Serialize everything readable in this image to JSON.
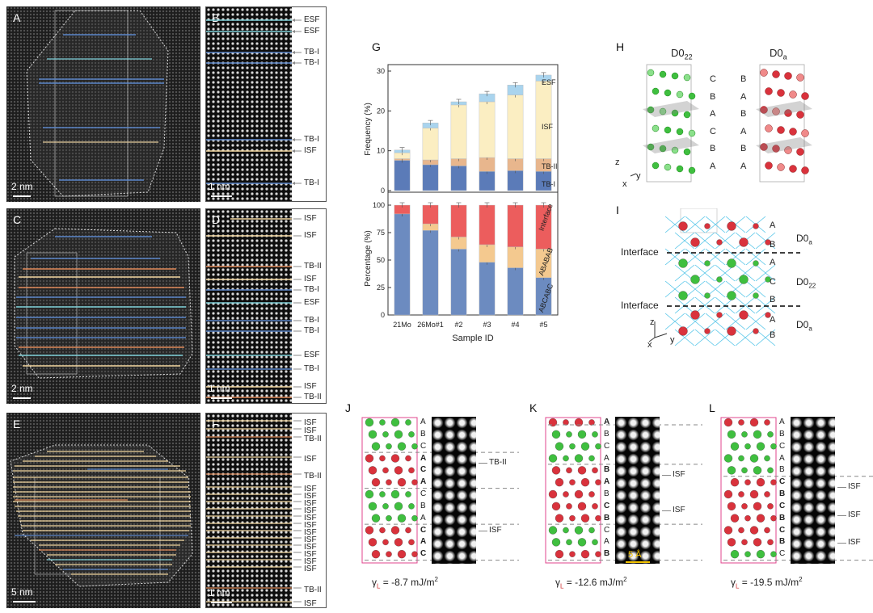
{
  "panels": {
    "A": {
      "label": "A",
      "scale": "2 nm"
    },
    "B": {
      "label": "B",
      "scale": "1 nm",
      "faults": [
        "ESF",
        "ESF",
        "TB-I",
        "TB-I",
        "TB-I",
        "ISF",
        "TB-I"
      ]
    },
    "C": {
      "label": "C",
      "scale": "2 nm"
    },
    "D": {
      "label": "D",
      "scale": "1 nm",
      "faults": [
        "ISF",
        "ISF",
        "TB-II",
        "ISF",
        "TB-I",
        "ESF",
        "TB-I",
        "TB-I",
        "ESF",
        "TB-I",
        "ISF",
        "TB-II"
      ]
    },
    "E": {
      "label": "E",
      "scale": "5 nm"
    },
    "F": {
      "label": "F",
      "scale": "1 nm",
      "faults": [
        "ISF",
        "ISF",
        "TB-II",
        "ISF",
        "TB-II",
        "ISF",
        "ISF",
        "ISF",
        "ISF",
        "ISF",
        "ISF",
        "ISF",
        "ISF",
        "ISF",
        "ISF",
        "ISF",
        "ISF",
        "TB-II",
        "ISF"
      ]
    },
    "G": {
      "label": "G"
    },
    "H": {
      "label": "H",
      "left_title": "D0",
      "left_sub": "22",
      "right_title": "D0",
      "right_sub": "a",
      "left_stack": [
        "C",
        "B",
        "A",
        "C",
        "B",
        "A"
      ],
      "right_stack": [
        "B",
        "A",
        "B",
        "A",
        "B",
        "A"
      ],
      "axis_z": "z",
      "axis_x": "x",
      "axis_y": "y"
    },
    "I": {
      "label": "I",
      "interface": "Interface",
      "stack": [
        "A",
        "B",
        "A",
        "C",
        "B",
        "A",
        "B"
      ],
      "phase_top": "D0",
      "phase_top_sub": "a",
      "phase_mid": "D0",
      "phase_mid_sub": "22",
      "phase_bot": "D0",
      "phase_bot_sub": "a",
      "axis_z": "z",
      "axis_x": "x",
      "axis_y": "y"
    },
    "J": {
      "label": "J",
      "stack": [
        "A",
        "B",
        "C",
        "A",
        "C",
        "A",
        "C",
        "B",
        "A",
        "C",
        "A",
        "C"
      ],
      "bold": [
        false,
        false,
        false,
        true,
        true,
        true,
        false,
        false,
        false,
        true,
        true,
        true
      ],
      "faults": [
        "TB-II",
        "ISF"
      ],
      "gamma_prefix": "γ",
      "gamma_sub": "L",
      "gamma_value": " = -8.7 mJ/m",
      "gamma_sup": "2"
    },
    "K": {
      "label": "K",
      "stack": [
        "A",
        "B",
        "C",
        "A",
        "B",
        "A",
        "B",
        "C",
        "B",
        "C",
        "A",
        "B"
      ],
      "bold": [
        true,
        false,
        false,
        false,
        true,
        true,
        false,
        true,
        true,
        false,
        false,
        true
      ],
      "faults": [
        "ISF",
        "ISF"
      ],
      "scale": "5 Å",
      "gamma_prefix": "γ",
      "gamma_sub": "L",
      "gamma_value": " = -12.6 mJ/m",
      "gamma_sup": "2"
    },
    "L": {
      "label": "L",
      "stack": [
        "A",
        "B",
        "C",
        "A",
        "B",
        "C",
        "B",
        "C",
        "B",
        "C",
        "B",
        "C"
      ],
      "bold": [
        false,
        false,
        false,
        false,
        false,
        true,
        true,
        true,
        true,
        true,
        true,
        false
      ],
      "faults": [
        "ISF",
        "ISF",
        "ISF"
      ],
      "gamma_prefix": "γ",
      "gamma_sub": "L",
      "gamma_value": " = -19.5 mJ/m",
      "gamma_sup": "2"
    }
  },
  "colors": {
    "tb1": "#5b86c9",
    "tb2": "#e08a5a",
    "isf": "#f3d7a0",
    "esf": "#7fd0d8",
    "red_atom": "#d9323c",
    "green_atom": "#3fbf3f",
    "frame_pink": "#e0458c"
  },
  "chart_data": [
    {
      "type": "bar",
      "stacked": true,
      "ylabel": "Frequency (%)",
      "ylim": [
        0,
        30
      ],
      "yticks": [
        0,
        10,
        20,
        30
      ],
      "categories": [
        "21Mo",
        "26Mo#1",
        "#2",
        "#3",
        "#4",
        "#5"
      ],
      "series": [
        {
          "name": "TB-I",
          "color": "#5b7bb8",
          "values": [
            7.6,
            6.5,
            6.2,
            4.8,
            5.0,
            4.8
          ]
        },
        {
          "name": "TB-II",
          "color": "#e8b68d",
          "values": [
            0.4,
            1.2,
            1.8,
            3.5,
            3.0,
            3.2
          ]
        },
        {
          "name": "ISF",
          "color": "#fbeec2",
          "values": [
            1.5,
            8.0,
            13.5,
            14.0,
            16.0,
            19.5
          ]
        },
        {
          "name": "ESF",
          "color": "#a9d4ee",
          "values": [
            0.7,
            1.3,
            0.8,
            2.0,
            2.5,
            1.5
          ]
        }
      ]
    },
    {
      "type": "bar",
      "stacked": true,
      "xlabel": "Sample ID",
      "ylabel": "Percentage (%)",
      "ylim": [
        0,
        100
      ],
      "yticks": [
        0,
        25,
        50,
        75,
        100
      ],
      "categories": [
        "21Mo",
        "26Mo#1",
        "#2",
        "#3",
        "#4",
        "#5"
      ],
      "series": [
        {
          "name": "ABCABC",
          "color": "#6c8bc0",
          "values": [
            92,
            77,
            60,
            48,
            43,
            34
          ]
        },
        {
          "name": "ABABAB",
          "color": "#f4c98f",
          "values": [
            0,
            6,
            11,
            16,
            19,
            26
          ]
        },
        {
          "name": "Interface",
          "color": "#ec5d5d",
          "values": [
            8,
            17,
            29,
            36,
            38,
            40
          ]
        }
      ]
    }
  ]
}
